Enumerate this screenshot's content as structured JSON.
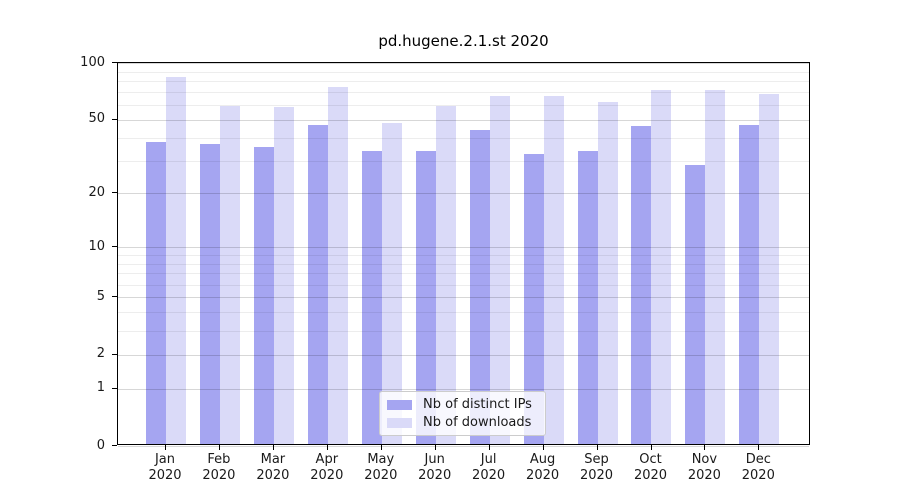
{
  "chart_data": {
    "type": "bar",
    "title": "pd.hugene.2.1.st 2020",
    "categories": [
      "Jan\n2020",
      "Feb\n2020",
      "Mar\n2020",
      "Apr\n2020",
      "May\n2020",
      "Jun\n2020",
      "Jul\n2020",
      "Aug\n2020",
      "Sep\n2020",
      "Oct\n2020",
      "Nov\n2020",
      "Dec\n2020"
    ],
    "series": [
      {
        "name": "Nb of distinct IPs",
        "color": "#a5a5f1",
        "values": [
          37,
          36,
          35,
          46,
          33,
          33,
          43,
          32,
          33,
          45,
          28,
          46
        ]
      },
      {
        "name": "Nb of downloads",
        "color": "#dadaf8",
        "values": [
          82,
          58,
          57,
          73,
          47,
          58,
          65,
          65,
          61,
          70,
          70,
          67
        ]
      }
    ],
    "xlabel": "",
    "ylabel": "",
    "yscale": "log1p",
    "ylim": [
      0,
      100
    ],
    "yticks_major": [
      0,
      1,
      2,
      5,
      10,
      20,
      50,
      100
    ],
    "yticks_minor": [
      3,
      4,
      6,
      7,
      8,
      9,
      30,
      40,
      60,
      70,
      80,
      90
    ],
    "grid": "both",
    "grid_above_bars": true,
    "legend_position": "lower center"
  },
  "colors": {
    "bar_distinct_ips": "#a5a5f1",
    "bar_downloads": "#dadaf8",
    "grid_major": "#d8d8d8",
    "grid_minor": "#ededed",
    "axis": "#000000",
    "text": "#1a1a1a",
    "legend_border": "#cccccc"
  }
}
